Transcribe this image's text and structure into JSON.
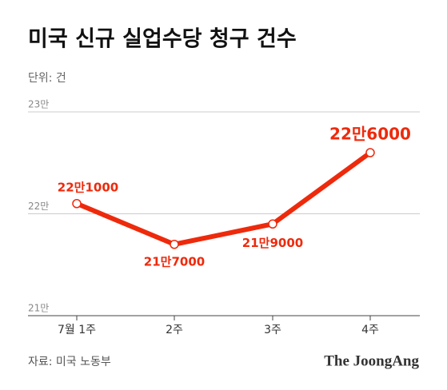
{
  "chart_data": {
    "type": "line",
    "title": "미국 신규 실업수당 청구 건수",
    "subtitle": "단위: 건",
    "categories": [
      "7월 1주",
      "2주",
      "3주",
      "4주"
    ],
    "series": [
      {
        "name": "실업수당 청구 건수",
        "color": "#ee2a0c",
        "values": [
          221000,
          217000,
          219000,
          226000
        ],
        "value_labels": [
          "22만1000",
          "21만7000",
          "21만9000",
          "22만6000"
        ]
      }
    ],
    "ylim": [
      210000,
      230000
    ],
    "yticks": [
      {
        "value": 210000,
        "label": "21만"
      },
      {
        "value": 220000,
        "label": "22만"
      },
      {
        "value": 230000,
        "label": "23만"
      }
    ],
    "grid": true,
    "source": "자료: 미국 노동부",
    "logo": "The JoongAng"
  }
}
